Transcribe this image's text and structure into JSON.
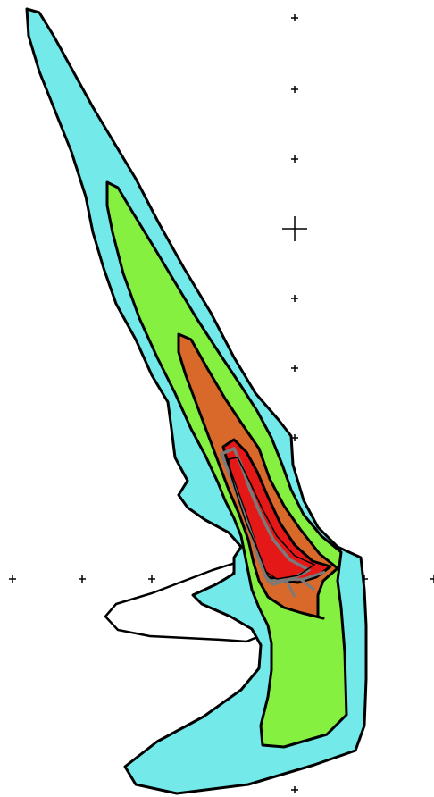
{
  "map": {
    "kind": "contour plume overlay",
    "background": "#ffffff",
    "grid": true,
    "crosshair": "center marker",
    "contour_levels": [
      {
        "id": "level-1",
        "color": "#74e9e9"
      },
      {
        "id": "level-2",
        "color": "#86f041"
      },
      {
        "id": "level-3",
        "color": "#d8692a"
      },
      {
        "id": "level-4",
        "color": "#e51818"
      },
      {
        "id": "level-5",
        "color": "#7a7a7a"
      }
    ],
    "outline_color": "#000000"
  }
}
